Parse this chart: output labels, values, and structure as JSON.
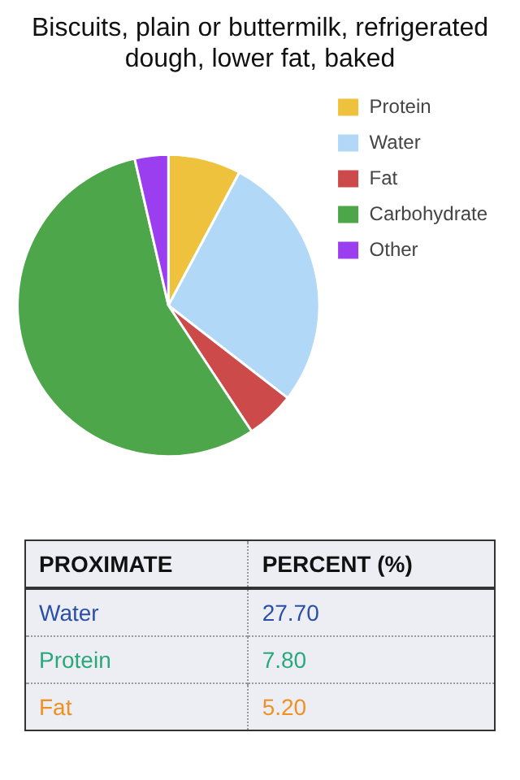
{
  "chart_data": {
    "type": "pie",
    "title": "Biscuits, plain or buttermilk, refrigerated dough, lower fat, baked",
    "categories": [
      "Protein",
      "Water",
      "Fat",
      "Carbohydrate",
      "Other"
    ],
    "values": [
      7.8,
      27.7,
      5.2,
      55.7,
      3.6
    ],
    "colors": [
      "#efc23d",
      "#b1d8f6",
      "#cc4a4a",
      "#4ea64b",
      "#9b3ef0"
    ],
    "legend": "top right",
    "annotations": [
      "PROXIMATE",
      "PERCENT (%)",
      "Water",
      "27.70",
      "Protein",
      "7.80",
      "Fat",
      "5.20"
    ]
  }
}
